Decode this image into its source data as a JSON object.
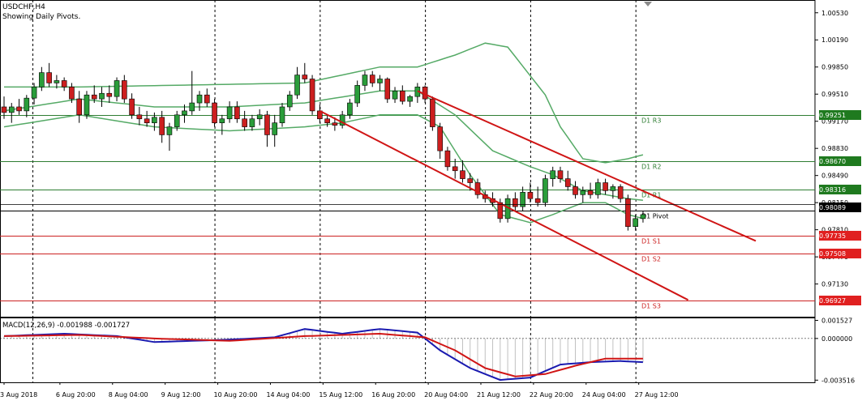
{
  "header": {
    "symbol": "USDCHF,H4",
    "subtitle": "Showing Daily Pivots."
  },
  "macd_label": "MACD(12,26,9) -0.001988 -0.001727",
  "colors": {
    "pivot_line": "#000000",
    "resistance_line": "#2e7d32",
    "support_line": "#cc2222",
    "resistance_tag": "#1f7a1f",
    "support_tag": "#e02020",
    "bollinger": "#55aa66",
    "bull_candle": "#2a9d3a",
    "bear_candle": "#cc1f1f",
    "channel": "#d01515",
    "macd_blue": "#1a1ab0",
    "macd_red": "#d01515",
    "histogram": "#c0c0c0",
    "grid": "#000000"
  },
  "chart_data": {
    "type": "candlestick",
    "title": "USDCHF,H4",
    "subtitle": "Showing Daily Pivots.",
    "price_axis": {
      "ylim": [
        0.9672,
        1.0069
      ],
      "ticks": [
        "1.00530",
        "1.00190",
        "0.99850",
        "0.99510",
        "0.99170",
        "0.98830",
        "0.98490",
        "0.98150",
        "0.97810",
        "0.97470",
        "0.97130"
      ]
    },
    "time_axis": {
      "labels": [
        "3 Aug 2018",
        "6 Aug 20:00",
        "8 Aug 04:00",
        "9 Aug 12:00",
        "10 Aug 20:00",
        "14 Aug 04:00",
        "15 Aug 12:00",
        "16 Aug 20:00",
        "20 Aug 04:00",
        "21 Aug 12:00",
        "22 Aug 20:00",
        "24 Aug 04:00",
        "27 Aug 12:00"
      ],
      "gridline_labels": [
        "6 Aug 20:00",
        "9 Aug 12:00",
        "14 Aug 04:00",
        "16 Aug 20:00",
        "21 Aug 12:00",
        "24 Aug 04:00"
      ]
    },
    "current_price": "0.98089",
    "pivots": [
      {
        "name": "D1 R3",
        "value": 0.99251,
        "tag": "0.99251",
        "kind": "resistance"
      },
      {
        "name": "D1 R2",
        "value": 0.9867,
        "tag": "0.98670",
        "kind": "resistance"
      },
      {
        "name": "D1 R1",
        "value": 0.98316,
        "tag": "0.98316",
        "kind": "resistance"
      },
      {
        "name": "D1 Pivot",
        "value": 0.98053,
        "tag": "",
        "kind": "pivot"
      },
      {
        "name": "D1 S1",
        "value": 0.97735,
        "tag": "0.97735",
        "kind": "support"
      },
      {
        "name": "D1 S2",
        "value": 0.97508,
        "tag": "0.97508",
        "kind": "support"
      },
      {
        "name": "D1 S3",
        "value": 0.96927,
        "tag": "0.96927",
        "kind": "support"
      }
    ],
    "candles": [
      [
        0.9935,
        0.9948,
        0.992,
        0.9928
      ],
      [
        0.9928,
        0.994,
        0.9915,
        0.9935
      ],
      [
        0.9935,
        0.9945,
        0.9925,
        0.993
      ],
      [
        0.993,
        0.995,
        0.9922,
        0.9946
      ],
      [
        0.9946,
        0.9965,
        0.9938,
        0.996
      ],
      [
        0.996,
        0.9985,
        0.9955,
        0.9978
      ],
      [
        0.9978,
        0.999,
        0.996,
        0.9965
      ],
      [
        0.9965,
        0.9975,
        0.9958,
        0.9968
      ],
      [
        0.9968,
        0.9972,
        0.9955,
        0.996
      ],
      [
        0.996,
        0.9965,
        0.994,
        0.9945
      ],
      [
        0.9945,
        0.9955,
        0.9915,
        0.9925
      ],
      [
        0.9925,
        0.9955,
        0.992,
        0.995
      ],
      [
        0.995,
        0.9962,
        0.994,
        0.9945
      ],
      [
        0.9945,
        0.996,
        0.9935,
        0.9952
      ],
      [
        0.9952,
        0.9962,
        0.994,
        0.9948
      ],
      [
        0.9948,
        0.9972,
        0.9942,
        0.9968
      ],
      [
        0.9968,
        0.9975,
        0.994,
        0.9945
      ],
      [
        0.9945,
        0.9952,
        0.992,
        0.9925
      ],
      [
        0.9925,
        0.9935,
        0.9912,
        0.992
      ],
      [
        0.992,
        0.993,
        0.991,
        0.9915
      ],
      [
        0.9915,
        0.9928,
        0.9905,
        0.9922
      ],
      [
        0.9922,
        0.993,
        0.989,
        0.99
      ],
      [
        0.99,
        0.9915,
        0.988,
        0.991
      ],
      [
        0.991,
        0.993,
        0.9905,
        0.9925
      ],
      [
        0.9925,
        0.9938,
        0.9915,
        0.993
      ],
      [
        0.993,
        0.998,
        0.9925,
        0.994
      ],
      [
        0.994,
        0.9955,
        0.993,
        0.995
      ],
      [
        0.995,
        0.9958,
        0.9935,
        0.994
      ],
      [
        0.994,
        0.9945,
        0.991,
        0.9915
      ],
      [
        0.9915,
        0.9925,
        0.99,
        0.992
      ],
      [
        0.992,
        0.9942,
        0.9915,
        0.9935
      ],
      [
        0.9935,
        0.9942,
        0.9915,
        0.992
      ],
      [
        0.992,
        0.993,
        0.9905,
        0.991
      ],
      [
        0.991,
        0.9925,
        0.9905,
        0.992
      ],
      [
        0.992,
        0.9932,
        0.9912,
        0.9925
      ],
      [
        0.9925,
        0.993,
        0.9885,
        0.99
      ],
      [
        0.99,
        0.9925,
        0.9885,
        0.9915
      ],
      [
        0.9915,
        0.994,
        0.991,
        0.9935
      ],
      [
        0.9935,
        0.9955,
        0.993,
        0.995
      ],
      [
        0.995,
        0.9985,
        0.9945,
        0.9975
      ],
      [
        0.9975,
        0.999,
        0.9965,
        0.997
      ],
      [
        0.997,
        0.9975,
        0.9925,
        0.993
      ],
      [
        0.993,
        0.9938,
        0.9915,
        0.992
      ],
      [
        0.992,
        0.9925,
        0.991,
        0.9915
      ],
      [
        0.9915,
        0.9922,
        0.9905,
        0.9912
      ],
      [
        0.9912,
        0.993,
        0.9908,
        0.9925
      ],
      [
        0.9925,
        0.9945,
        0.992,
        0.994
      ],
      [
        0.994,
        0.9968,
        0.9935,
        0.9962
      ],
      [
        0.9962,
        0.998,
        0.9955,
        0.9975
      ],
      [
        0.9975,
        0.998,
        0.996,
        0.9965
      ],
      [
        0.9965,
        0.9975,
        0.9955,
        0.997
      ],
      [
        0.997,
        0.9972,
        0.994,
        0.9945
      ],
      [
        0.9945,
        0.996,
        0.994,
        0.9955
      ],
      [
        0.9955,
        0.9962,
        0.9938,
        0.9942
      ],
      [
        0.9942,
        0.995,
        0.9935,
        0.9948
      ],
      [
        0.9948,
        0.9965,
        0.994,
        0.996
      ],
      [
        0.996,
        0.9962,
        0.994,
        0.9945
      ],
      [
        0.9945,
        0.9948,
        0.9905,
        0.991
      ],
      [
        0.991,
        0.9915,
        0.987,
        0.988
      ],
      [
        0.988,
        0.9885,
        0.9855,
        0.986
      ],
      [
        0.986,
        0.987,
        0.9845,
        0.9855
      ],
      [
        0.9855,
        0.9868,
        0.984,
        0.9845
      ],
      [
        0.9845,
        0.9852,
        0.983,
        0.984
      ],
      [
        0.984,
        0.9845,
        0.982,
        0.9825
      ],
      [
        0.9825,
        0.983,
        0.9815,
        0.982
      ],
      [
        0.982,
        0.9828,
        0.981,
        0.9815
      ],
      [
        0.9815,
        0.982,
        0.979,
        0.9795
      ],
      [
        0.9795,
        0.9825,
        0.979,
        0.982
      ],
      [
        0.982,
        0.9828,
        0.9805,
        0.981
      ],
      [
        0.981,
        0.9835,
        0.9805,
        0.9828
      ],
      [
        0.9828,
        0.984,
        0.9815,
        0.982
      ],
      [
        0.982,
        0.9835,
        0.981,
        0.9815
      ],
      [
        0.9815,
        0.985,
        0.981,
        0.9845
      ],
      [
        0.9845,
        0.986,
        0.9835,
        0.9855
      ],
      [
        0.9855,
        0.986,
        0.984,
        0.9845
      ],
      [
        0.9845,
        0.9855,
        0.983,
        0.9835
      ],
      [
        0.9835,
        0.9842,
        0.982,
        0.9825
      ],
      [
        0.9825,
        0.9835,
        0.9815,
        0.983
      ],
      [
        0.983,
        0.984,
        0.982,
        0.9825
      ],
      [
        0.9825,
        0.9845,
        0.982,
        0.984
      ],
      [
        0.984,
        0.9845,
        0.9825,
        0.983
      ],
      [
        0.983,
        0.9838,
        0.982,
        0.9835
      ],
      [
        0.9835,
        0.9838,
        0.9815,
        0.982
      ],
      [
        0.982,
        0.9825,
        0.978,
        0.9785
      ],
      [
        0.9785,
        0.98,
        0.978,
        0.9795
      ],
      [
        0.9795,
        0.9805,
        0.979,
        0.98
      ]
    ],
    "bollinger": {
      "upper_anchors": [
        [
          0,
          0.996
        ],
        [
          10,
          0.996
        ],
        [
          40,
          0.9965
        ],
        [
          45,
          0.9975
        ],
        [
          50,
          0.9985
        ],
        [
          55,
          0.9985
        ],
        [
          60,
          1.0
        ],
        [
          64,
          1.0015
        ],
        [
          67,
          1.001
        ],
        [
          72,
          0.995
        ],
        [
          74,
          0.991
        ],
        [
          77,
          0.987
        ],
        [
          80,
          0.9865
        ],
        [
          83,
          0.987
        ],
        [
          85,
          0.9875
        ]
      ],
      "middle_anchors": [
        [
          0,
          0.993
        ],
        [
          10,
          0.9945
        ],
        [
          20,
          0.9935
        ],
        [
          30,
          0.9935
        ],
        [
          40,
          0.994
        ],
        [
          50,
          0.9955
        ],
        [
          55,
          0.9955
        ],
        [
          60,
          0.9925
        ],
        [
          65,
          0.988
        ],
        [
          70,
          0.986
        ],
        [
          73,
          0.985
        ],
        [
          77,
          0.983
        ],
        [
          80,
          0.9825
        ],
        [
          83,
          0.982
        ],
        [
          85,
          0.9818
        ]
      ],
      "lower_anchors": [
        [
          0,
          0.991
        ],
        [
          10,
          0.9925
        ],
        [
          20,
          0.991
        ],
        [
          30,
          0.9905
        ],
        [
          40,
          0.991
        ],
        [
          45,
          0.9915
        ],
        [
          50,
          0.9925
        ],
        [
          55,
          0.9925
        ],
        [
          58,
          0.991
        ],
        [
          62,
          0.985
        ],
        [
          66,
          0.98
        ],
        [
          70,
          0.979
        ],
        [
          73,
          0.98
        ],
        [
          77,
          0.9815
        ],
        [
          80,
          0.9815
        ],
        [
          83,
          0.98
        ],
        [
          85,
          0.9795
        ]
      ]
    },
    "channel_lines": [
      {
        "from": [
          55,
          0.9955
        ],
        "to": [
          100,
          0.9767
        ]
      },
      {
        "from": [
          42,
          0.993
        ],
        "to": [
          91,
          0.9693
        ]
      }
    ],
    "macd": {
      "label": "MACD(12,26,9) -0.001988 -0.001727",
      "ylim": [
        -0.0037,
        0.0017
      ],
      "ticks": [
        "0.001527",
        "0.000000",
        "-0.003516"
      ],
      "macd_anchors": [
        [
          0,
          0.0002
        ],
        [
          8,
          0.0004
        ],
        [
          15,
          0.0002
        ],
        [
          20,
          -0.0003
        ],
        [
          25,
          -0.0002
        ],
        [
          30,
          -0.0001
        ],
        [
          36,
          0.0001
        ],
        [
          40,
          0.0008
        ],
        [
          45,
          0.0004
        ],
        [
          50,
          0.0008
        ],
        [
          55,
          0.0005
        ],
        [
          58,
          -0.001
        ],
        [
          62,
          -0.0025
        ],
        [
          66,
          -0.0035
        ],
        [
          70,
          -0.0033
        ],
        [
          74,
          -0.0022
        ],
        [
          78,
          -0.002
        ],
        [
          82,
          -0.0019
        ],
        [
          85,
          -0.002
        ]
      ],
      "signal_anchors": [
        [
          0,
          0.0002
        ],
        [
          10,
          0.0003
        ],
        [
          20,
          0.0
        ],
        [
          30,
          -0.0002
        ],
        [
          40,
          0.0002
        ],
        [
          50,
          0.0004
        ],
        [
          56,
          0.0001
        ],
        [
          60,
          -0.001
        ],
        [
          64,
          -0.0025
        ],
        [
          68,
          -0.0032
        ],
        [
          72,
          -0.003
        ],
        [
          76,
          -0.0023
        ],
        [
          80,
          -0.0017
        ],
        [
          85,
          -0.0017
        ]
      ]
    }
  }
}
